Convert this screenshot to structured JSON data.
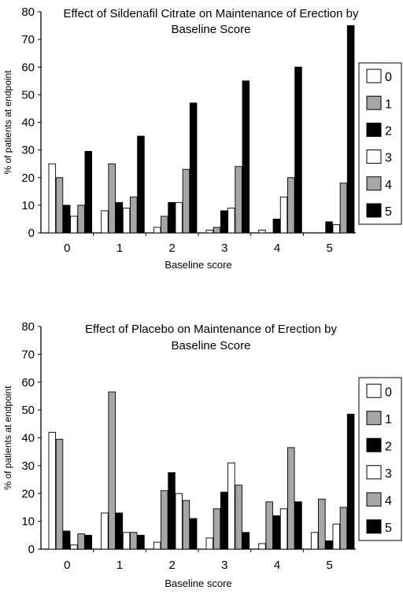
{
  "chart_data": [
    {
      "type": "bar",
      "title_lines": [
        "Effect of Sildenafil Citrate on Maintenance of Erection by",
        "Baseline Score"
      ],
      "xlabel": "Baseline score",
      "ylabel": "% of patients at endpoint",
      "ylim": [
        0,
        80
      ],
      "yticks": [
        0,
        10,
        20,
        30,
        40,
        50,
        60,
        70,
        80
      ],
      "categories": [
        "0",
        "1",
        "2",
        "3",
        "4",
        "5"
      ],
      "legend_position": "right",
      "series": [
        {
          "name": "0",
          "fill": "white",
          "values": [
            25,
            8,
            2,
            1,
            1,
            0
          ]
        },
        {
          "name": "1",
          "fill": "gray",
          "values": [
            20,
            25,
            6,
            2,
            0,
            0
          ]
        },
        {
          "name": "2",
          "fill": "black",
          "values": [
            10,
            11,
            11,
            8,
            5,
            4
          ]
        },
        {
          "name": "3",
          "fill": "white",
          "values": [
            6,
            9,
            11,
            9,
            13,
            3
          ]
        },
        {
          "name": "4",
          "fill": "gray",
          "values": [
            10,
            13,
            23,
            24,
            20,
            18
          ]
        },
        {
          "name": "5",
          "fill": "black",
          "values": [
            29.5,
            35,
            47,
            55,
            60,
            75
          ]
        }
      ]
    },
    {
      "type": "bar",
      "title_lines": [
        "Effect of Placebo on Maintenance of Erection by",
        "Baseline Score"
      ],
      "xlabel": "Baseline score",
      "ylabel": "% of patients at endpoint",
      "ylim": [
        0,
        80
      ],
      "yticks": [
        0,
        10,
        20,
        30,
        40,
        50,
        60,
        70,
        80
      ],
      "categories": [
        "0",
        "1",
        "2",
        "3",
        "4",
        "5"
      ],
      "legend_position": "right",
      "series": [
        {
          "name": "0",
          "fill": "white",
          "values": [
            42,
            13,
            2.5,
            4,
            2,
            6
          ]
        },
        {
          "name": "1",
          "fill": "gray",
          "values": [
            39.5,
            56.5,
            21,
            14.5,
            17,
            18
          ]
        },
        {
          "name": "2",
          "fill": "black",
          "values": [
            6.5,
            13,
            27.5,
            20.5,
            12,
            3
          ]
        },
        {
          "name": "3",
          "fill": "white",
          "values": [
            1.5,
            6,
            20,
            31,
            14.5,
            9
          ]
        },
        {
          "name": "4",
          "fill": "gray",
          "values": [
            5.5,
            6,
            17.5,
            23,
            36.5,
            15
          ]
        },
        {
          "name": "5",
          "fill": "black",
          "values": [
            5,
            5,
            11,
            6,
            17,
            48.5
          ]
        }
      ]
    }
  ],
  "colors": {
    "white": "#ffffff",
    "gray": "#a6a6a6",
    "black": "#000000",
    "axis": "#000000"
  }
}
